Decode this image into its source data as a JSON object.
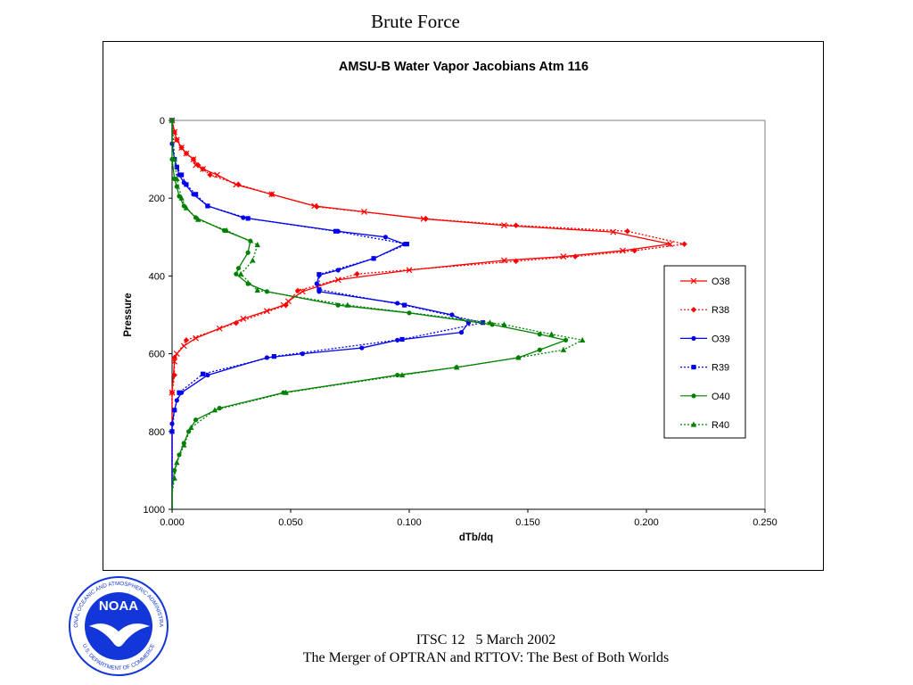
{
  "slide": {
    "title": "Brute Force",
    "footer_line1": "ITSC 12   5 March 2002",
    "footer_line2": "The Merger of OPTRAN and RTTOV: The Best of Both Worlds",
    "logo": {
      "center_text": "NOAA",
      "ring_text_top": "NATIONAL OCEANIC AND ATMOSPHERIC ADMINISTRATION",
      "ring_text_bottom": "U.S. DEPARTMENT OF COMMERCE",
      "color": "#1336d8"
    }
  },
  "chart_data": {
    "type": "line",
    "title": "AMSU-B Water Vapor Jacobians Atm 116",
    "xlabel": "dTb/dq",
    "ylabel": "Pressure",
    "xlim": [
      0,
      0.25
    ],
    "ylim": [
      0,
      1000
    ],
    "y_inverted": true,
    "x_ticks": [
      "0.000",
      "0.050",
      "0.100",
      "0.150",
      "0.200",
      "0.250"
    ],
    "y_ticks": [
      "0",
      "200",
      "400",
      "600",
      "800",
      "1000"
    ],
    "grid": false,
    "legend_position": "right",
    "series": [
      {
        "name": "O38",
        "color": "#ff0000",
        "dash": "solid",
        "marker": "x",
        "points": [
          [
            0,
            0
          ],
          [
            0.001,
            30
          ],
          [
            0.002,
            50
          ],
          [
            0.004,
            70
          ],
          [
            0.006,
            85
          ],
          [
            0.009,
            100
          ],
          [
            0.01,
            115
          ],
          [
            0.013,
            125
          ],
          [
            0.019,
            140
          ],
          [
            0.027,
            165
          ],
          [
            0.042,
            190
          ],
          [
            0.06,
            220
          ],
          [
            0.081,
            235
          ],
          [
            0.106,
            253
          ],
          [
            0.14,
            270
          ],
          [
            0.186,
            287
          ],
          [
            0.21,
            318
          ],
          [
            0.19,
            335
          ],
          [
            0.165,
            350
          ],
          [
            0.14,
            360
          ],
          [
            0.1,
            385
          ],
          [
            0.07,
            410
          ],
          [
            0.055,
            440
          ],
          [
            0.049,
            465
          ],
          [
            0.047,
            475
          ],
          [
            0.04,
            490
          ],
          [
            0.03,
            510
          ],
          [
            0.02,
            535
          ],
          [
            0.01,
            560
          ],
          [
            0.005,
            580
          ],
          [
            0.002,
            600
          ],
          [
            0.001,
            620
          ],
          [
            0,
            700
          ],
          [
            0,
            1000
          ]
        ]
      },
      {
        "name": "R38",
        "color": "#ff0000",
        "dash": "dotted",
        "marker": "diamond",
        "points": [
          [
            0,
            0
          ],
          [
            0.001,
            30
          ],
          [
            0.002,
            50
          ],
          [
            0.004,
            70
          ],
          [
            0.006,
            85
          ],
          [
            0.009,
            100
          ],
          [
            0.011,
            115
          ],
          [
            0.013,
            125
          ],
          [
            0.016,
            140
          ],
          [
            0.028,
            165
          ],
          [
            0.042,
            190
          ],
          [
            0.061,
            222
          ],
          [
            0.107,
            253
          ],
          [
            0.145,
            270
          ],
          [
            0.192,
            285
          ],
          [
            0.216,
            318
          ],
          [
            0.195,
            335
          ],
          [
            0.17,
            350
          ],
          [
            0.145,
            362
          ],
          [
            0.078,
            395
          ],
          [
            0.053,
            438
          ],
          [
            0.048,
            475
          ],
          [
            0.027,
            521
          ],
          [
            0.006,
            565
          ],
          [
            0.001,
            610
          ],
          [
            0.001,
            655
          ],
          [
            0,
            700
          ],
          [
            0,
            1000
          ]
        ]
      },
      {
        "name": "O39",
        "color": "#0000ee",
        "dash": "solid",
        "marker": "circle",
        "points": [
          [
            0,
            0
          ],
          [
            0,
            60
          ],
          [
            0.001,
            100
          ],
          [
            0.002,
            120
          ],
          [
            0.003,
            140
          ],
          [
            0.005,
            160
          ],
          [
            0.009,
            190
          ],
          [
            0.015,
            220
          ],
          [
            0.03,
            250
          ],
          [
            0.07,
            285
          ],
          [
            0.09,
            300
          ],
          [
            0.098,
            318
          ],
          [
            0.085,
            355
          ],
          [
            0.07,
            385
          ],
          [
            0.062,
            398
          ],
          [
            0.061,
            420
          ],
          [
            0.062,
            440
          ],
          [
            0.095,
            470
          ],
          [
            0.118,
            500
          ],
          [
            0.125,
            520
          ],
          [
            0.122,
            545
          ],
          [
            0.095,
            565
          ],
          [
            0.08,
            585
          ],
          [
            0.055,
            600
          ],
          [
            0.04,
            610
          ],
          [
            0.015,
            655
          ],
          [
            0.004,
            700
          ],
          [
            0.002,
            720
          ],
          [
            0.001,
            745
          ],
          [
            0,
            780
          ],
          [
            0,
            1000
          ]
        ]
      },
      {
        "name": "R39",
        "color": "#0000ee",
        "dash": "dotted",
        "marker": "square",
        "points": [
          [
            0,
            0
          ],
          [
            0.001,
            100
          ],
          [
            0.002,
            120
          ],
          [
            0.004,
            140
          ],
          [
            0.006,
            165
          ],
          [
            0.01,
            190
          ],
          [
            0.015,
            220
          ],
          [
            0.032,
            252
          ],
          [
            0.069,
            285
          ],
          [
            0.099,
            318
          ],
          [
            0.085,
            355
          ],
          [
            0.062,
            396
          ],
          [
            0.062,
            435
          ],
          [
            0.098,
            475
          ],
          [
            0.131,
            520
          ],
          [
            0.097,
            563
          ],
          [
            0.043,
            607
          ],
          [
            0.013,
            652
          ],
          [
            0.003,
            700
          ],
          [
            0.001,
            745
          ],
          [
            0,
            800
          ],
          [
            0,
            1000
          ]
        ]
      },
      {
        "name": "O40",
        "color": "#008000",
        "dash": "solid",
        "marker": "circle",
        "points": [
          [
            0,
            0
          ],
          [
            0,
            100
          ],
          [
            0.001,
            150
          ],
          [
            0.002,
            170
          ],
          [
            0.003,
            195
          ],
          [
            0.005,
            220
          ],
          [
            0.01,
            250
          ],
          [
            0.022,
            283
          ],
          [
            0.033,
            310
          ],
          [
            0.032,
            340
          ],
          [
            0.028,
            380
          ],
          [
            0.027,
            395
          ],
          [
            0.032,
            420
          ],
          [
            0.04,
            440
          ],
          [
            0.07,
            475
          ],
          [
            0.1,
            495
          ],
          [
            0.135,
            525
          ],
          [
            0.155,
            550
          ],
          [
            0.166,
            565
          ],
          [
            0.155,
            590
          ],
          [
            0.146,
            610
          ],
          [
            0.12,
            635
          ],
          [
            0.095,
            655
          ],
          [
            0.047,
            700
          ],
          [
            0.02,
            740
          ],
          [
            0.01,
            770
          ],
          [
            0.007,
            800
          ],
          [
            0.005,
            830
          ],
          [
            0.003,
            860
          ],
          [
            0.001,
            900
          ],
          [
            0,
            950
          ],
          [
            0,
            1000
          ]
        ]
      },
      {
        "name": "R40",
        "color": "#008000",
        "dash": "dotted",
        "marker": "triangle",
        "points": [
          [
            0,
            0
          ],
          [
            0.001,
            100
          ],
          [
            0.002,
            150
          ],
          [
            0.004,
            200
          ],
          [
            0.006,
            225
          ],
          [
            0.011,
            255
          ],
          [
            0.023,
            283
          ],
          [
            0.036,
            320
          ],
          [
            0.034,
            360
          ],
          [
            0.029,
            395
          ],
          [
            0.036,
            437
          ],
          [
            0.074,
            475
          ],
          [
            0.134,
            520
          ],
          [
            0.14,
            525
          ],
          [
            0.16,
            550
          ],
          [
            0.173,
            565
          ],
          [
            0.165,
            590
          ],
          [
            0.146,
            610
          ],
          [
            0.12,
            635
          ],
          [
            0.097,
            655
          ],
          [
            0.048,
            700
          ],
          [
            0.018,
            745
          ],
          [
            0.008,
            790
          ],
          [
            0.005,
            835
          ],
          [
            0.002,
            880
          ],
          [
            0.001,
            920
          ],
          [
            0,
            960
          ],
          [
            0,
            1000
          ]
        ]
      }
    ]
  }
}
